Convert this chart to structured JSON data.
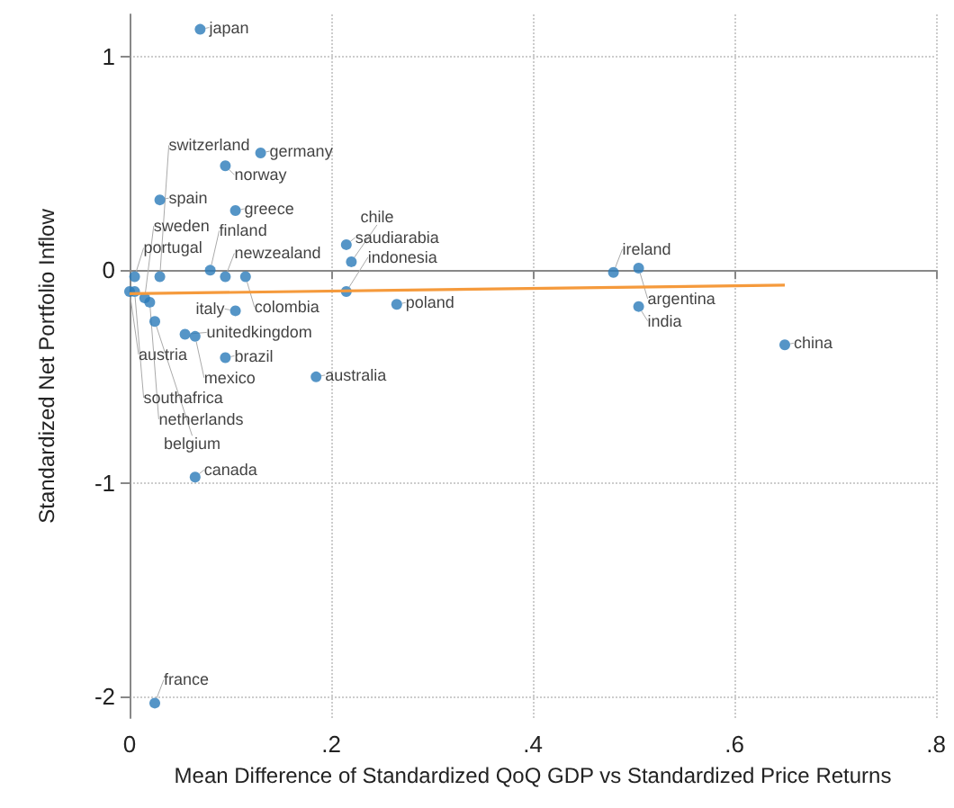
{
  "chart_data": {
    "type": "scatter",
    "xlabel": "Mean Difference of Standardized QoQ GDP vs Standardized Price Returns",
    "ylabel": "Standardized Net Portfolio Inflow",
    "xlim": [
      0,
      0.8
    ],
    "ylim": [
      -2.1,
      1.2
    ],
    "xticks": [
      0,
      {
        "value": 0.2,
        "label": ".2"
      },
      {
        "value": 0.4,
        "label": ".4"
      },
      {
        "value": 0.6,
        "label": ".6"
      },
      {
        "value": 0.8,
        "label": ".8"
      }
    ],
    "yticks": [
      -2,
      -1,
      0,
      1
    ],
    "grid": true,
    "marker": "circle",
    "series": [
      {
        "type": "scatter",
        "color": "#2a7ab9",
        "x": [
          0.07,
          0.13,
          0.095,
          0.03,
          0.105,
          0.215,
          0.22,
          0.08,
          0.48,
          0.505,
          0.005,
          0.03,
          0.095,
          0.115,
          0.0,
          0.005,
          0.015,
          0.02,
          0.025,
          0.105,
          0.055,
          0.065,
          0.095,
          0.185,
          0.215,
          0.265,
          0.505,
          0.65,
          0.065,
          0.025
        ],
        "values": [
          1.13,
          0.55,
          0.49,
          0.33,
          0.28,
          0.12,
          0.04,
          0.0,
          -0.01,
          0.01,
          -0.03,
          -0.03,
          -0.03,
          -0.03,
          -0.1,
          -0.1,
          -0.13,
          -0.15,
          -0.24,
          -0.19,
          -0.3,
          -0.31,
          -0.41,
          -0.5,
          -0.1,
          -0.16,
          -0.17,
          -0.35,
          -0.97,
          -2.03
        ]
      },
      {
        "type": "line",
        "color": "#f59a3c",
        "x": [
          0,
          0.65
        ],
        "values": [
          -0.11,
          -0.07
        ],
        "marker": "none"
      }
    ],
    "annotations": [
      {
        "text": "japan",
        "x": 0.07,
        "y": 1.13
      },
      {
        "text": "germany",
        "x": 0.13,
        "y": 0.55
      },
      {
        "text": "norway",
        "x": 0.095,
        "y": 0.49
      },
      {
        "text": "spain",
        "x": 0.03,
        "y": 0.33
      },
      {
        "text": "greece",
        "x": 0.105,
        "y": 0.28
      },
      {
        "text": "saudiarabia",
        "x": 0.215,
        "y": 0.12
      },
      {
        "text": "chile",
        "x": 0.22,
        "y": 0.04
      },
      {
        "text": "finland",
        "x": 0.08,
        "y": 0.0
      },
      {
        "text": "ireland",
        "x": 0.48,
        "y": -0.01
      },
      {
        "text": "argentina",
        "x": 0.505,
        "y": 0.01
      },
      {
        "text": "portugal",
        "x": 0.005,
        "y": -0.03
      },
      {
        "text": "switzerland",
        "x": 0.03,
        "y": -0.03
      },
      {
        "text": "newzealand",
        "x": 0.095,
        "y": -0.03
      },
      {
        "text": "colombia",
        "x": 0.115,
        "y": -0.03
      },
      {
        "text": "austria",
        "x": 0.0,
        "y": -0.1
      },
      {
        "text": "southafrica",
        "x": 0.005,
        "y": -0.1
      },
      {
        "text": "sweden",
        "x": 0.015,
        "y": -0.13
      },
      {
        "text": "netherlands",
        "x": 0.02,
        "y": -0.15
      },
      {
        "text": "belgium",
        "x": 0.025,
        "y": -0.24
      },
      {
        "text": "italy",
        "x": 0.105,
        "y": -0.19
      },
      {
        "text": "unitedkingdom",
        "x": 0.055,
        "y": -0.3
      },
      {
        "text": "mexico",
        "x": 0.065,
        "y": -0.31
      },
      {
        "text": "brazil",
        "x": 0.095,
        "y": -0.41
      },
      {
        "text": "australia",
        "x": 0.185,
        "y": -0.5
      },
      {
        "text": "indonesia",
        "x": 0.215,
        "y": -0.1
      },
      {
        "text": "poland",
        "x": 0.265,
        "y": -0.16
      },
      {
        "text": "india",
        "x": 0.505,
        "y": -0.17
      },
      {
        "text": "china",
        "x": 0.65,
        "y": -0.35
      },
      {
        "text": "canada",
        "x": 0.065,
        "y": -0.97
      },
      {
        "text": "france",
        "x": 0.025,
        "y": -2.03
      }
    ]
  }
}
